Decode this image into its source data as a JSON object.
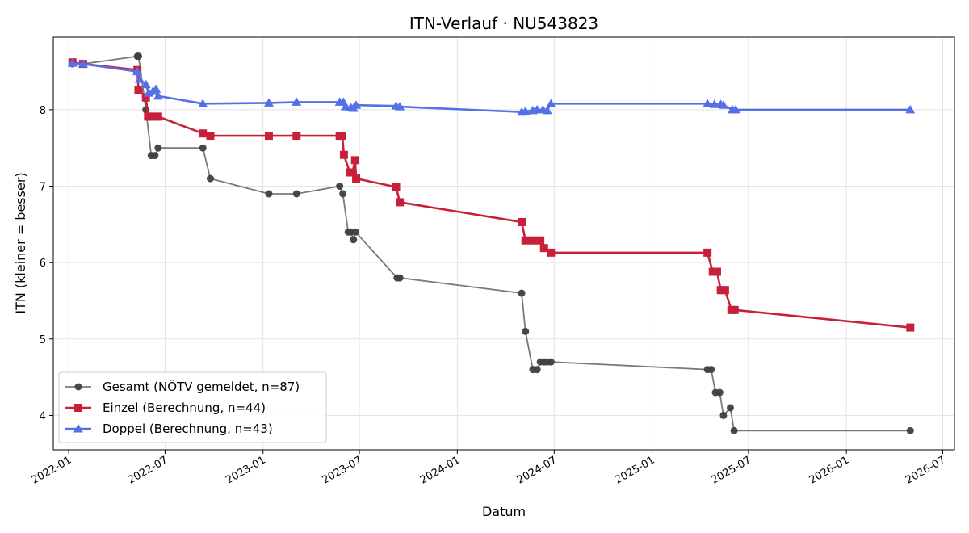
{
  "chart_data": {
    "type": "line",
    "title": "ITN-Verlauf · NU543823",
    "xlabel": "Datum",
    "ylabel": "ITN  (kleiner = besser)",
    "x_ticks": [
      "2022-01",
      "2022-07",
      "2023-01",
      "2023-07",
      "2024-01",
      "2024-07",
      "2025-01",
      "2025-07",
      "2026-01",
      "2026-07"
    ],
    "y_ticks": [
      4,
      5,
      6,
      7,
      8
    ],
    "xlim": [
      "2021-12-03",
      "2026-07-23"
    ],
    "ylim": [
      3.55,
      8.95
    ],
    "grid": true,
    "legend_position": "lower-left",
    "series": [
      {
        "name": "Gesamt (NÖTV gemeldet, n=87)",
        "color": "#404040",
        "marker": "circle",
        "points": [
          [
            "2022-01-08",
            8.6
          ],
          [
            "2022-01-28",
            8.6
          ],
          [
            "2022-05-10",
            8.7
          ],
          [
            "2022-05-12",
            8.7
          ],
          [
            "2022-05-26",
            8.0
          ],
          [
            "2022-06-05",
            7.4
          ],
          [
            "2022-06-12",
            7.4
          ],
          [
            "2022-06-18",
            7.5
          ],
          [
            "2022-09-10",
            7.5
          ],
          [
            "2022-09-24",
            7.1
          ],
          [
            "2023-01-12",
            6.9
          ],
          [
            "2023-03-05",
            6.9
          ],
          [
            "2023-05-25",
            7.0
          ],
          [
            "2023-05-31",
            6.9
          ],
          [
            "2023-06-10",
            6.4
          ],
          [
            "2023-06-15",
            6.4
          ],
          [
            "2023-06-20",
            6.3
          ],
          [
            "2023-06-24",
            6.4
          ],
          [
            "2023-09-10",
            5.8
          ],
          [
            "2023-09-15",
            5.8
          ],
          [
            "2024-05-01",
            5.6
          ],
          [
            "2024-05-08",
            5.1
          ],
          [
            "2024-05-22",
            4.6
          ],
          [
            "2024-05-30",
            4.6
          ],
          [
            "2024-06-05",
            4.7
          ],
          [
            "2024-06-12",
            4.7
          ],
          [
            "2024-06-18",
            4.7
          ],
          [
            "2024-06-25",
            4.7
          ],
          [
            "2025-04-15",
            4.6
          ],
          [
            "2025-04-22",
            4.6
          ],
          [
            "2025-04-30",
            4.3
          ],
          [
            "2025-05-08",
            4.3
          ],
          [
            "2025-05-15",
            4.0
          ],
          [
            "2025-05-28",
            4.1
          ],
          [
            "2025-06-04",
            3.8
          ],
          [
            "2026-05-01",
            3.8
          ]
        ]
      },
      {
        "name": "Einzel (Berechnung, n=44)",
        "color": "#c8203b",
        "marker": "square",
        "points": [
          [
            "2022-01-08",
            8.62
          ],
          [
            "2022-01-28",
            8.6
          ],
          [
            "2022-05-10",
            8.52
          ],
          [
            "2022-05-12",
            8.26
          ],
          [
            "2022-05-26",
            8.16
          ],
          [
            "2022-05-30",
            7.91
          ],
          [
            "2022-06-08",
            7.91
          ],
          [
            "2022-06-18",
            7.91
          ],
          [
            "2022-09-10",
            7.69
          ],
          [
            "2022-09-24",
            7.66
          ],
          [
            "2023-01-12",
            7.66
          ],
          [
            "2023-03-05",
            7.66
          ],
          [
            "2023-05-25",
            7.66
          ],
          [
            "2023-05-30",
            7.66
          ],
          [
            "2023-06-02",
            7.41
          ],
          [
            "2023-06-13",
            7.18
          ],
          [
            "2023-06-18",
            7.18
          ],
          [
            "2023-06-23",
            7.34
          ],
          [
            "2023-06-25",
            7.1
          ],
          [
            "2023-09-08",
            6.99
          ],
          [
            "2023-09-15",
            6.79
          ],
          [
            "2024-05-01",
            6.53
          ],
          [
            "2024-05-08",
            6.29
          ],
          [
            "2024-05-22",
            6.29
          ],
          [
            "2024-06-05",
            6.29
          ],
          [
            "2024-06-12",
            6.19
          ],
          [
            "2024-06-25",
            6.13
          ],
          [
            "2025-04-15",
            6.13
          ],
          [
            "2025-04-25",
            5.88
          ],
          [
            "2025-05-03",
            5.88
          ],
          [
            "2025-05-10",
            5.64
          ],
          [
            "2025-05-18",
            5.64
          ],
          [
            "2025-05-30",
            5.38
          ],
          [
            "2025-06-05",
            5.38
          ],
          [
            "2026-05-01",
            5.15
          ]
        ]
      },
      {
        "name": "Doppel (Berechnung, n=43)",
        "color": "#5470e8",
        "marker": "triangle",
        "points": [
          [
            "2022-01-08",
            8.61
          ],
          [
            "2022-01-28",
            8.6
          ],
          [
            "2022-05-10",
            8.5
          ],
          [
            "2022-05-14",
            8.4
          ],
          [
            "2022-05-26",
            8.33
          ],
          [
            "2022-05-31",
            8.22
          ],
          [
            "2022-06-08",
            8.24
          ],
          [
            "2022-06-14",
            8.27
          ],
          [
            "2022-06-18",
            8.18
          ],
          [
            "2022-09-10",
            8.08
          ],
          [
            "2023-01-12",
            8.09
          ],
          [
            "2023-03-05",
            8.1
          ],
          [
            "2023-05-25",
            8.1
          ],
          [
            "2023-06-01",
            8.1
          ],
          [
            "2023-06-05",
            8.04
          ],
          [
            "2023-06-15",
            8.03
          ],
          [
            "2023-06-20",
            8.02
          ],
          [
            "2023-06-25",
            8.06
          ],
          [
            "2023-09-08",
            8.05
          ],
          [
            "2023-09-15",
            8.04
          ],
          [
            "2024-05-01",
            7.97
          ],
          [
            "2024-05-08",
            7.98
          ],
          [
            "2024-05-22",
            7.99
          ],
          [
            "2024-05-30",
            8.0
          ],
          [
            "2024-06-10",
            8.0
          ],
          [
            "2024-06-18",
            7.99
          ],
          [
            "2024-06-25",
            8.08
          ],
          [
            "2025-04-15",
            8.08
          ],
          [
            "2025-04-28",
            8.07
          ],
          [
            "2025-05-10",
            8.07
          ],
          [
            "2025-05-15",
            8.06
          ],
          [
            "2025-06-01",
            8.0
          ],
          [
            "2025-06-07",
            8.0
          ],
          [
            "2026-05-01",
            8.0
          ]
        ]
      }
    ]
  }
}
